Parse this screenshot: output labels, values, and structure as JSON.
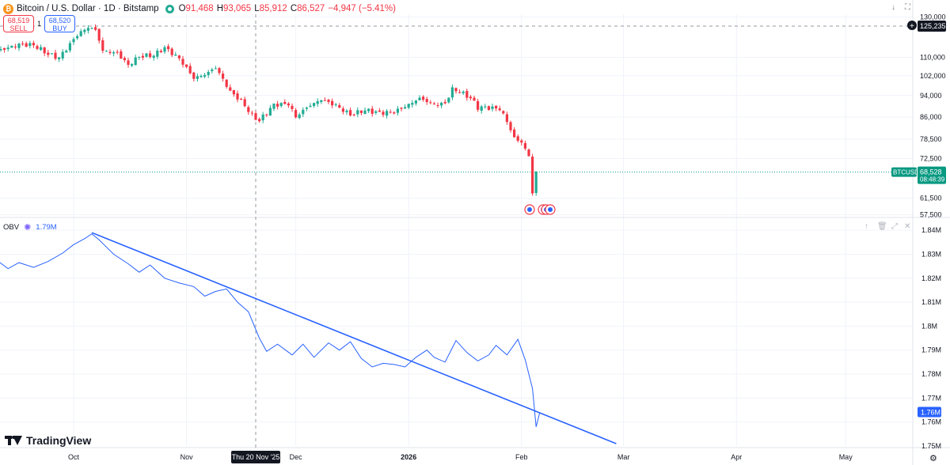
{
  "header": {
    "symbol_title": "Bitcoin / U.S. Dollar · 1D · Bitstamp",
    "ohlc": [
      {
        "k": "O",
        "v": "91,468"
      },
      {
        "k": "H",
        "v": "93,065"
      },
      {
        "k": "L",
        "v": "85,912"
      },
      {
        "k": "C",
        "v": "86,527"
      }
    ],
    "change": "−4,947 (−5.41%)"
  },
  "trade": {
    "sell_price": "68,519",
    "sell_label": "SELL",
    "buy_price": "68,520",
    "buy_label": "BUY",
    "spread": "1"
  },
  "obv": {
    "label": "OBV",
    "value": "1.79M"
  },
  "brand": "TradingView",
  "icons": {
    "symbol": "bitcoin-logo-icon",
    "market_status": "market-open-icon",
    "top": [
      "arrow-down-icon",
      "fullscreen-icon"
    ],
    "pane": [
      "arrow-up-icon",
      "trash-icon",
      "maximize-icon",
      "close-icon"
    ],
    "crosshair_add": "plus-circle-icon",
    "settings": "gear-icon",
    "events": "us-flag-icon"
  },
  "colors": {
    "up": "#22ab94",
    "down": "#f23645",
    "obv": "#2962ff",
    "trend": "#2962ff",
    "price_tag": "#089981",
    "crosshair_tag": "#131722"
  },
  "chart_data": [
    {
      "type": "candlestick",
      "title": "Bitcoin / U.S. Dollar · 1D · Bitstamp",
      "x_ticks": [
        "Oct",
        "Nov",
        "Dec",
        "2026",
        "Feb",
        "Mar",
        "Apr",
        "May"
      ],
      "y_ticks": [
        "130,000",
        "110,000",
        "102,000",
        "94,000",
        "86,000",
        "78,500",
        "72,500",
        "61,500",
        "57,500"
      ],
      "ylim": [
        57000,
        131500
      ],
      "y_scale": "log",
      "last_price": {
        "symbol": "BTCUSD",
        "value": "68,528",
        "countdown": "08:48:39",
        "price": 68528
      },
      "crosshair": {
        "price_label": "125,235",
        "price": 125235,
        "date_label": "Thu 20 Nov '25",
        "date": "2025-11-20"
      },
      "grid": true,
      "closes": [
        {
          "date": "2025-09-01",
          "close": 110000
        },
        {
          "date": "2025-09-05",
          "close": 111000
        },
        {
          "date": "2025-09-09",
          "close": 112300
        },
        {
          "date": "2025-09-13",
          "close": 114000
        },
        {
          "date": "2025-09-17",
          "close": 116000
        },
        {
          "date": "2025-09-21",
          "close": 115800
        },
        {
          "date": "2025-09-25",
          "close": 111500
        },
        {
          "date": "2025-09-28",
          "close": 109800
        },
        {
          "date": "2025-10-01",
          "close": 116200
        },
        {
          "date": "2025-10-03",
          "close": 120800
        },
        {
          "date": "2025-10-06",
          "close": 124600
        },
        {
          "date": "2025-10-08",
          "close": 123300
        },
        {
          "date": "2025-10-10",
          "close": 113000
        },
        {
          "date": "2025-10-14",
          "close": 112000
        },
        {
          "date": "2025-10-17",
          "close": 106500
        },
        {
          "date": "2025-10-20",
          "close": 110500
        },
        {
          "date": "2025-10-24",
          "close": 111000
        },
        {
          "date": "2025-10-27",
          "close": 114500
        },
        {
          "date": "2025-10-31",
          "close": 109500
        },
        {
          "date": "2025-11-04",
          "close": 101000
        },
        {
          "date": "2025-11-07",
          "close": 102500
        },
        {
          "date": "2025-11-10",
          "close": 105500
        },
        {
          "date": "2025-11-14",
          "close": 95500
        },
        {
          "date": "2025-11-17",
          "close": 92000
        },
        {
          "date": "2025-11-20",
          "close": 86500
        },
        {
          "date": "2025-11-22",
          "close": 84700
        },
        {
          "date": "2025-11-26",
          "close": 90500
        },
        {
          "date": "2025-11-30",
          "close": 90800
        },
        {
          "date": "2025-12-02",
          "close": 86000
        },
        {
          "date": "2025-12-05",
          "close": 89500
        },
        {
          "date": "2025-12-09",
          "close": 92500
        },
        {
          "date": "2025-12-13",
          "close": 90200
        },
        {
          "date": "2025-12-17",
          "close": 86800
        },
        {
          "date": "2025-12-21",
          "close": 88500
        },
        {
          "date": "2025-12-25",
          "close": 87500
        },
        {
          "date": "2025-12-29",
          "close": 87800
        },
        {
          "date": "2026-01-02",
          "close": 90500
        },
        {
          "date": "2026-01-05",
          "close": 93000
        },
        {
          "date": "2026-01-09",
          "close": 90500
        },
        {
          "date": "2026-01-12",
          "close": 91000
        },
        {
          "date": "2026-01-14",
          "close": 96500
        },
        {
          "date": "2026-01-16",
          "close": 95500
        },
        {
          "date": "2026-01-19",
          "close": 93000
        },
        {
          "date": "2026-01-21",
          "close": 89500
        },
        {
          "date": "2026-01-23",
          "close": 89500
        },
        {
          "date": "2026-01-27",
          "close": 89000
        },
        {
          "date": "2026-01-29",
          "close": 84500
        },
        {
          "date": "2026-01-31",
          "close": 78800
        },
        {
          "date": "2026-02-02",
          "close": 77500
        },
        {
          "date": "2026-02-04",
          "close": 73200
        },
        {
          "date": "2026-02-05",
          "close": 62900
        },
        {
          "date": "2026-02-06",
          "close": 68528
        }
      ]
    },
    {
      "type": "line",
      "title": "OBV",
      "y_ticks": [
        "1.84M",
        "1.83M",
        "1.82M",
        "1.81M",
        "1.8M",
        "1.79M",
        "1.78M",
        "1.77M",
        "1.76M"
      ],
      "y_axis_bottom": "1.75M",
      "ylim": [
        1.75,
        1.845
      ],
      "y_unit": "M",
      "grid": true,
      "last_value_label": "1.76M",
      "series": [
        {
          "values": [
            {
              "date": "2025-08-20",
              "obv": 1.826
            },
            {
              "date": "2025-08-24",
              "obv": 1.8285
            },
            {
              "date": "2025-08-28",
              "obv": 1.8245
            },
            {
              "date": "2025-09-01",
              "obv": 1.8285
            },
            {
              "date": "2025-09-05",
              "obv": 1.8255
            },
            {
              "date": "2025-09-09",
              "obv": 1.8285
            },
            {
              "date": "2025-09-13",
              "obv": 1.824
            },
            {
              "date": "2025-09-16",
              "obv": 1.8265
            },
            {
              "date": "2025-09-20",
              "obv": 1.8245
            },
            {
              "date": "2025-09-24",
              "obv": 1.827
            },
            {
              "date": "2025-09-28",
              "obv": 1.8305
            },
            {
              "date": "2025-10-01",
              "obv": 1.834
            },
            {
              "date": "2025-10-04",
              "obv": 1.8365
            },
            {
              "date": "2025-10-06",
              "obv": 1.8385
            },
            {
              "date": "2025-10-08",
              "obv": 1.836
            },
            {
              "date": "2025-10-12",
              "obv": 1.83
            },
            {
              "date": "2025-10-16",
              "obv": 1.826
            },
            {
              "date": "2025-10-19",
              "obv": 1.8225
            },
            {
              "date": "2025-10-22",
              "obv": 1.8255
            },
            {
              "date": "2025-10-26",
              "obv": 1.82
            },
            {
              "date": "2025-10-30",
              "obv": 1.818
            },
            {
              "date": "2025-11-03",
              "obv": 1.8165
            },
            {
              "date": "2025-11-06",
              "obv": 1.8125
            },
            {
              "date": "2025-11-09",
              "obv": 1.8145
            },
            {
              "date": "2025-11-12",
              "obv": 1.8155
            },
            {
              "date": "2025-11-15",
              "obv": 1.81
            },
            {
              "date": "2025-11-18",
              "obv": 1.806
            },
            {
              "date": "2025-11-21",
              "obv": 1.795
            },
            {
              "date": "2025-11-23",
              "obv": 1.7895
            },
            {
              "date": "2025-11-26",
              "obv": 1.7925
            },
            {
              "date": "2025-11-30",
              "obv": 1.788
            },
            {
              "date": "2025-12-03",
              "obv": 1.7925
            },
            {
              "date": "2025-12-06",
              "obv": 1.787
            },
            {
              "date": "2025-12-10",
              "obv": 1.793
            },
            {
              "date": "2025-12-13",
              "obv": 1.79
            },
            {
              "date": "2025-12-16",
              "obv": 1.7935
            },
            {
              "date": "2025-12-19",
              "obv": 1.7865
            },
            {
              "date": "2025-12-22",
              "obv": 1.783
            },
            {
              "date": "2025-12-25",
              "obv": 1.7845
            },
            {
              "date": "2025-12-28",
              "obv": 1.784
            },
            {
              "date": "2025-12-31",
              "obv": 1.783
            },
            {
              "date": "2026-01-03",
              "obv": 1.787
            },
            {
              "date": "2026-01-06",
              "obv": 1.79
            },
            {
              "date": "2026-01-08",
              "obv": 1.787
            },
            {
              "date": "2026-01-11",
              "obv": 1.785
            },
            {
              "date": "2026-01-14",
              "obv": 1.794
            },
            {
              "date": "2026-01-17",
              "obv": 1.789
            },
            {
              "date": "2026-01-20",
              "obv": 1.7855
            },
            {
              "date": "2026-01-23",
              "obv": 1.788
            },
            {
              "date": "2026-01-25",
              "obv": 1.792
            },
            {
              "date": "2026-01-28",
              "obv": 1.788
            },
            {
              "date": "2026-01-31",
              "obv": 1.7945
            },
            {
              "date": "2026-02-02",
              "obv": 1.786
            },
            {
              "date": "2026-02-04",
              "obv": 1.774
            },
            {
              "date": "2026-02-05",
              "obv": 1.758
            },
            {
              "date": "2026-02-06",
              "obv": 1.764
            }
          ]
        }
      ],
      "trendline": [
        {
          "date": "2025-10-06",
          "obv": 1.839
        },
        {
          "date": "2026-02-27",
          "obv": 1.751
        }
      ]
    }
  ]
}
